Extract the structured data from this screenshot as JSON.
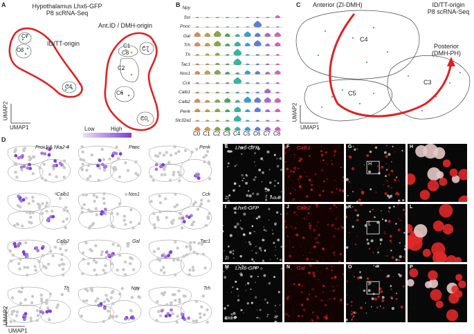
{
  "panel_labels": {
    "A": "A",
    "B": "B",
    "C": "C",
    "D": "D",
    "E": "E",
    "F": "F",
    "G": "G",
    "H": "H",
    "I": "I",
    "J": "J",
    "K": "K",
    "L": "L",
    "M": "M",
    "N": "N",
    "O": "O",
    "P": "P"
  },
  "panelA": {
    "title_line1": "Hypothalamus Lhx6-GFP",
    "title_line2": "P8 scRNA-Seq",
    "id_tt": "ID/TT-origin",
    "ant_id": "Ant.ID / DMH-origin",
    "clusters": [
      "C3",
      "C4",
      "C6",
      "C1",
      "C8",
      "C7",
      "C2",
      "C0"
    ],
    "c5": "C5",
    "axis_y": "UMAP2",
    "axis_x": "UMAP1"
  },
  "panelB": {
    "genes": [
      "Npy",
      "Sst",
      "Pnoc",
      "Gal",
      "Trh",
      "Th",
      "Tac1",
      "Nos1",
      "Cck",
      "Calb1",
      "Calb2",
      "Penk",
      "Slc32a1"
    ],
    "clusters": [
      "C0",
      "C1",
      "C2",
      "C3",
      "C4",
      "C5",
      "C6",
      "C7",
      "C8"
    ],
    "colors": [
      "#e6894a",
      "#c9a13b",
      "#8aa83a",
      "#3fae4a",
      "#33b7a0",
      "#2fa3d6",
      "#5a7de0",
      "#b063d6",
      "#e05ac0"
    ]
  },
  "panelC": {
    "anterior": "Anterior (ZI-DMH)",
    "id_tt": "ID/TT-origin",
    "p8": "P8 scRNA-Seq",
    "posterior_line1": "Posterior",
    "posterior_line2": "(DMH-PH)",
    "c4": "C4",
    "c5": "C5",
    "c3": "C3",
    "axis_y": "UMAP2",
    "axis_x": "UMAP1"
  },
  "panelD": {
    "legend_low": "Low",
    "legend_high": "High",
    "genes": [
      "Prox1 & Nkx2-4",
      "Pnoc",
      "Penk",
      "Calb1",
      "Nos1",
      "Cck",
      "Calb2",
      "Gal",
      "Tac1",
      "Th",
      "Npy",
      "Trh"
    ],
    "axis_y": "UMAP2",
    "axis_x": "UMAP1"
  },
  "micro": {
    "rows": [
      {
        "gfp": "Lhx6-GFP",
        "marker": "Calb1",
        "region": "ZI",
        "extra": "Adult",
        "box": "H"
      },
      {
        "gfp": "Lhx6-GFP",
        "marker": "Calb2",
        "region": "ZI",
        "extra": "",
        "box": "L"
      },
      {
        "gfp": "Lhx6-GFP",
        "marker": "Gal",
        "region": "DMH",
        "extra": "",
        "box": "P"
      }
    ]
  }
}
